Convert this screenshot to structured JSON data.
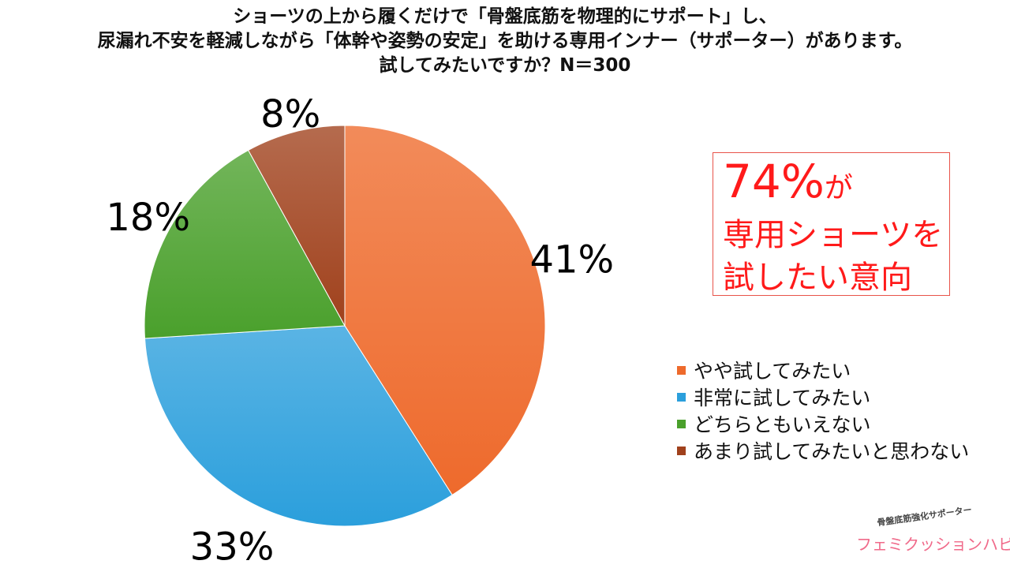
{
  "title_lines": [
    "ショーツの上から履くだけで「骨盤底筋を物理的にサポート」し、",
    "尿漏れ不安を軽減しながら「体幹や姿勢の安定」を助ける専用インナー（サポーター）があります。",
    "試してみたいですか？N＝300"
  ],
  "chart_data": {
    "type": "pie",
    "title": "ショーツの上から履くだけで「骨盤底筋を物理的にサポート」し、尿漏れ不安を軽減しながら「体幹や姿勢の安定」を助ける専用インナー（サポーター）があります。試してみたいですか？N＝300",
    "categories": [
      "やや試してみたい",
      "非常に試してみたい",
      "どちらともいえない",
      "あまり試してみたいと思わない"
    ],
    "values": [
      41,
      33,
      18,
      8
    ],
    "labels": [
      "41%",
      "33%",
      "18%",
      "8%"
    ],
    "colors": [
      "#ee6a2c",
      "#2b9fdc",
      "#4aa02c",
      "#a0411c"
    ],
    "start": "12 o'clock",
    "direction": "clockwise",
    "legend_position": "right"
  },
  "callout": {
    "headline_number": "74%",
    "headline_suffix": "が",
    "line2": "専用ショーツを",
    "line3": "試したい意向",
    "color": "#ff1a1a"
  },
  "logo": {
    "subtitle": "骨盤底筋強化サポーター",
    "name": "フェミクッションハピネス"
  }
}
